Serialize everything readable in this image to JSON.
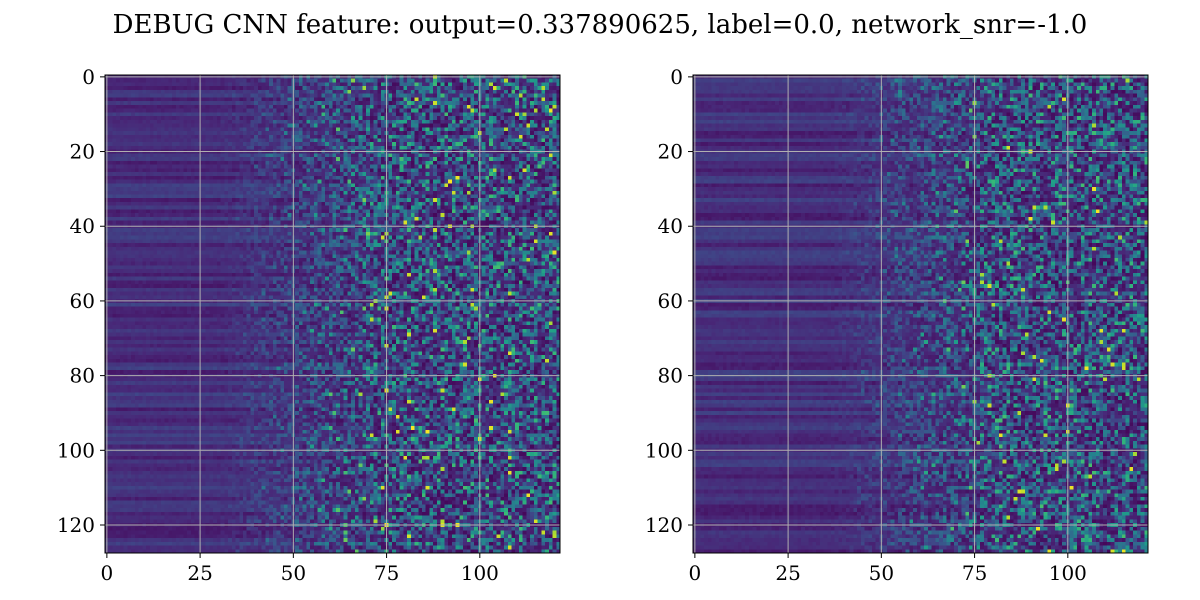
{
  "title": "DEBUG CNN feature: output=0.337890625, label=0.0, network_snr=-1.0",
  "chart_data": [
    {
      "type": "heatmap",
      "panel": "left",
      "rows": 128,
      "cols": 122,
      "xlim": [
        -0.5,
        121.5
      ],
      "ylim": [
        127.5,
        -0.5
      ],
      "xticks": [
        0,
        25,
        50,
        75,
        100
      ],
      "yticks": [
        0,
        20,
        40,
        60,
        80,
        100,
        120
      ],
      "grid": true,
      "colormap": "viridis",
      "noise_onset_col": 55,
      "seed": 11,
      "xlabel": "",
      "ylabel": ""
    },
    {
      "type": "heatmap",
      "panel": "right",
      "rows": 128,
      "cols": 122,
      "xlim": [
        -0.5,
        121.5
      ],
      "ylim": [
        127.5,
        -0.5
      ],
      "xticks": [
        0,
        25,
        50,
        75,
        100
      ],
      "yticks": [
        0,
        20,
        40,
        60,
        80,
        100,
        120
      ],
      "grid": true,
      "colormap": "viridis",
      "noise_onset_col": 62,
      "seed": 29,
      "xlabel": "",
      "ylabel": ""
    }
  ]
}
